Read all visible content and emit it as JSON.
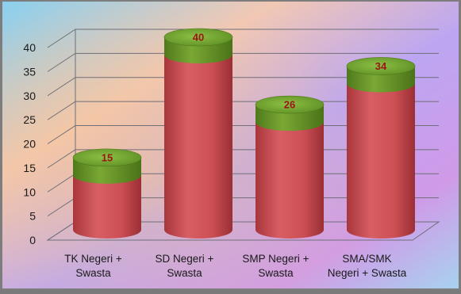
{
  "chart_data": {
    "type": "bar",
    "style": "3d-cylinder",
    "categories": [
      "TK Negeri + Swasta",
      "SD Negeri + Swasta",
      "SMP Negeri + Swasta",
      "SMA/SMK Negeri + Swasta"
    ],
    "category_lines": [
      [
        "TK Negeri +",
        "Swasta"
      ],
      [
        "SD Negeri +",
        "Swasta"
      ],
      [
        "SMP Negeri +",
        "Swasta"
      ],
      [
        "SMA/SMK",
        "Negeri + Swasta"
      ]
    ],
    "values": [
      15,
      40,
      26,
      34
    ],
    "data_labels": [
      "15",
      "40",
      "26",
      "34"
    ],
    "y_ticks": [
      0,
      5,
      10,
      15,
      20,
      25,
      30,
      35,
      40
    ],
    "ylim": [
      0,
      40
    ],
    "grid": true,
    "legend": "none",
    "title": "",
    "xlabel": "",
    "ylabel": "",
    "colors": {
      "bar_body": "#cc4f54",
      "bar_top": "#6d9a2b",
      "label_text": "#9a1414",
      "grid": "#6f6f78"
    }
  }
}
